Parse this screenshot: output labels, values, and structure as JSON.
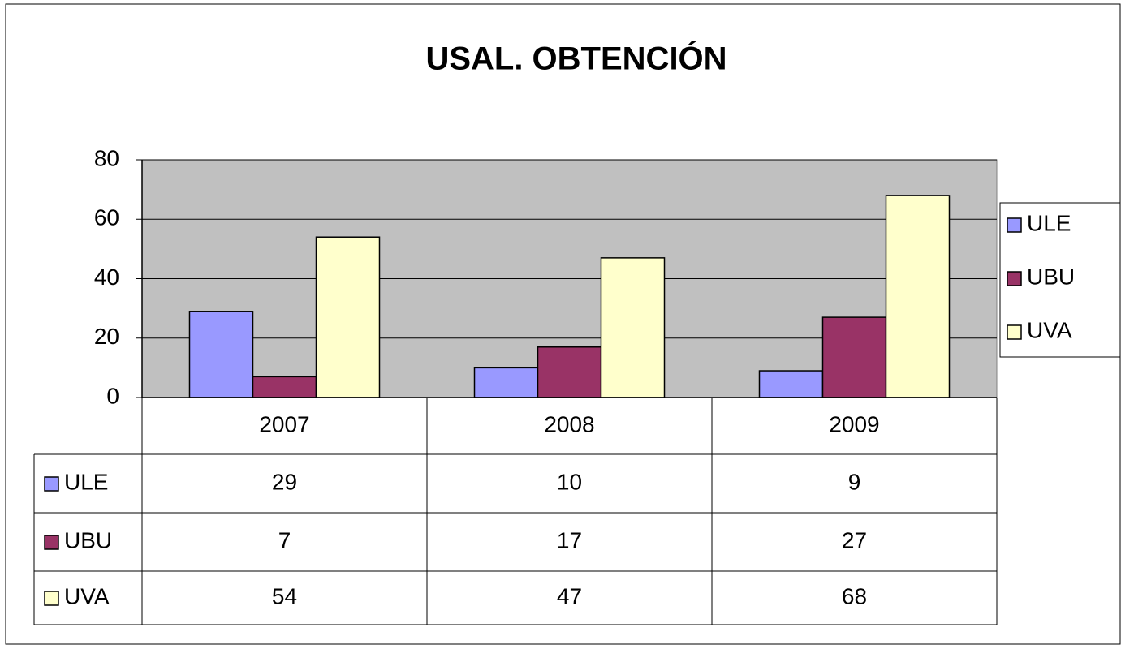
{
  "chart_data": {
    "type": "bar",
    "title": "USAL. OBTENCIÓN",
    "categories": [
      "2007",
      "2008",
      "2009"
    ],
    "series": [
      {
        "name": "ULE",
        "color": "#9999ff",
        "values": [
          29,
          10,
          9
        ]
      },
      {
        "name": "UBU",
        "color": "#993366",
        "values": [
          7,
          17,
          27
        ]
      },
      {
        "name": "UVA",
        "color": "#ffffcc",
        "values": [
          54,
          47,
          68
        ]
      }
    ],
    "ylim": [
      0,
      80
    ],
    "yticks": [
      0,
      20,
      40,
      60,
      80
    ],
    "grid": true,
    "legend": "right",
    "plot_background": "#c0c0c0"
  }
}
